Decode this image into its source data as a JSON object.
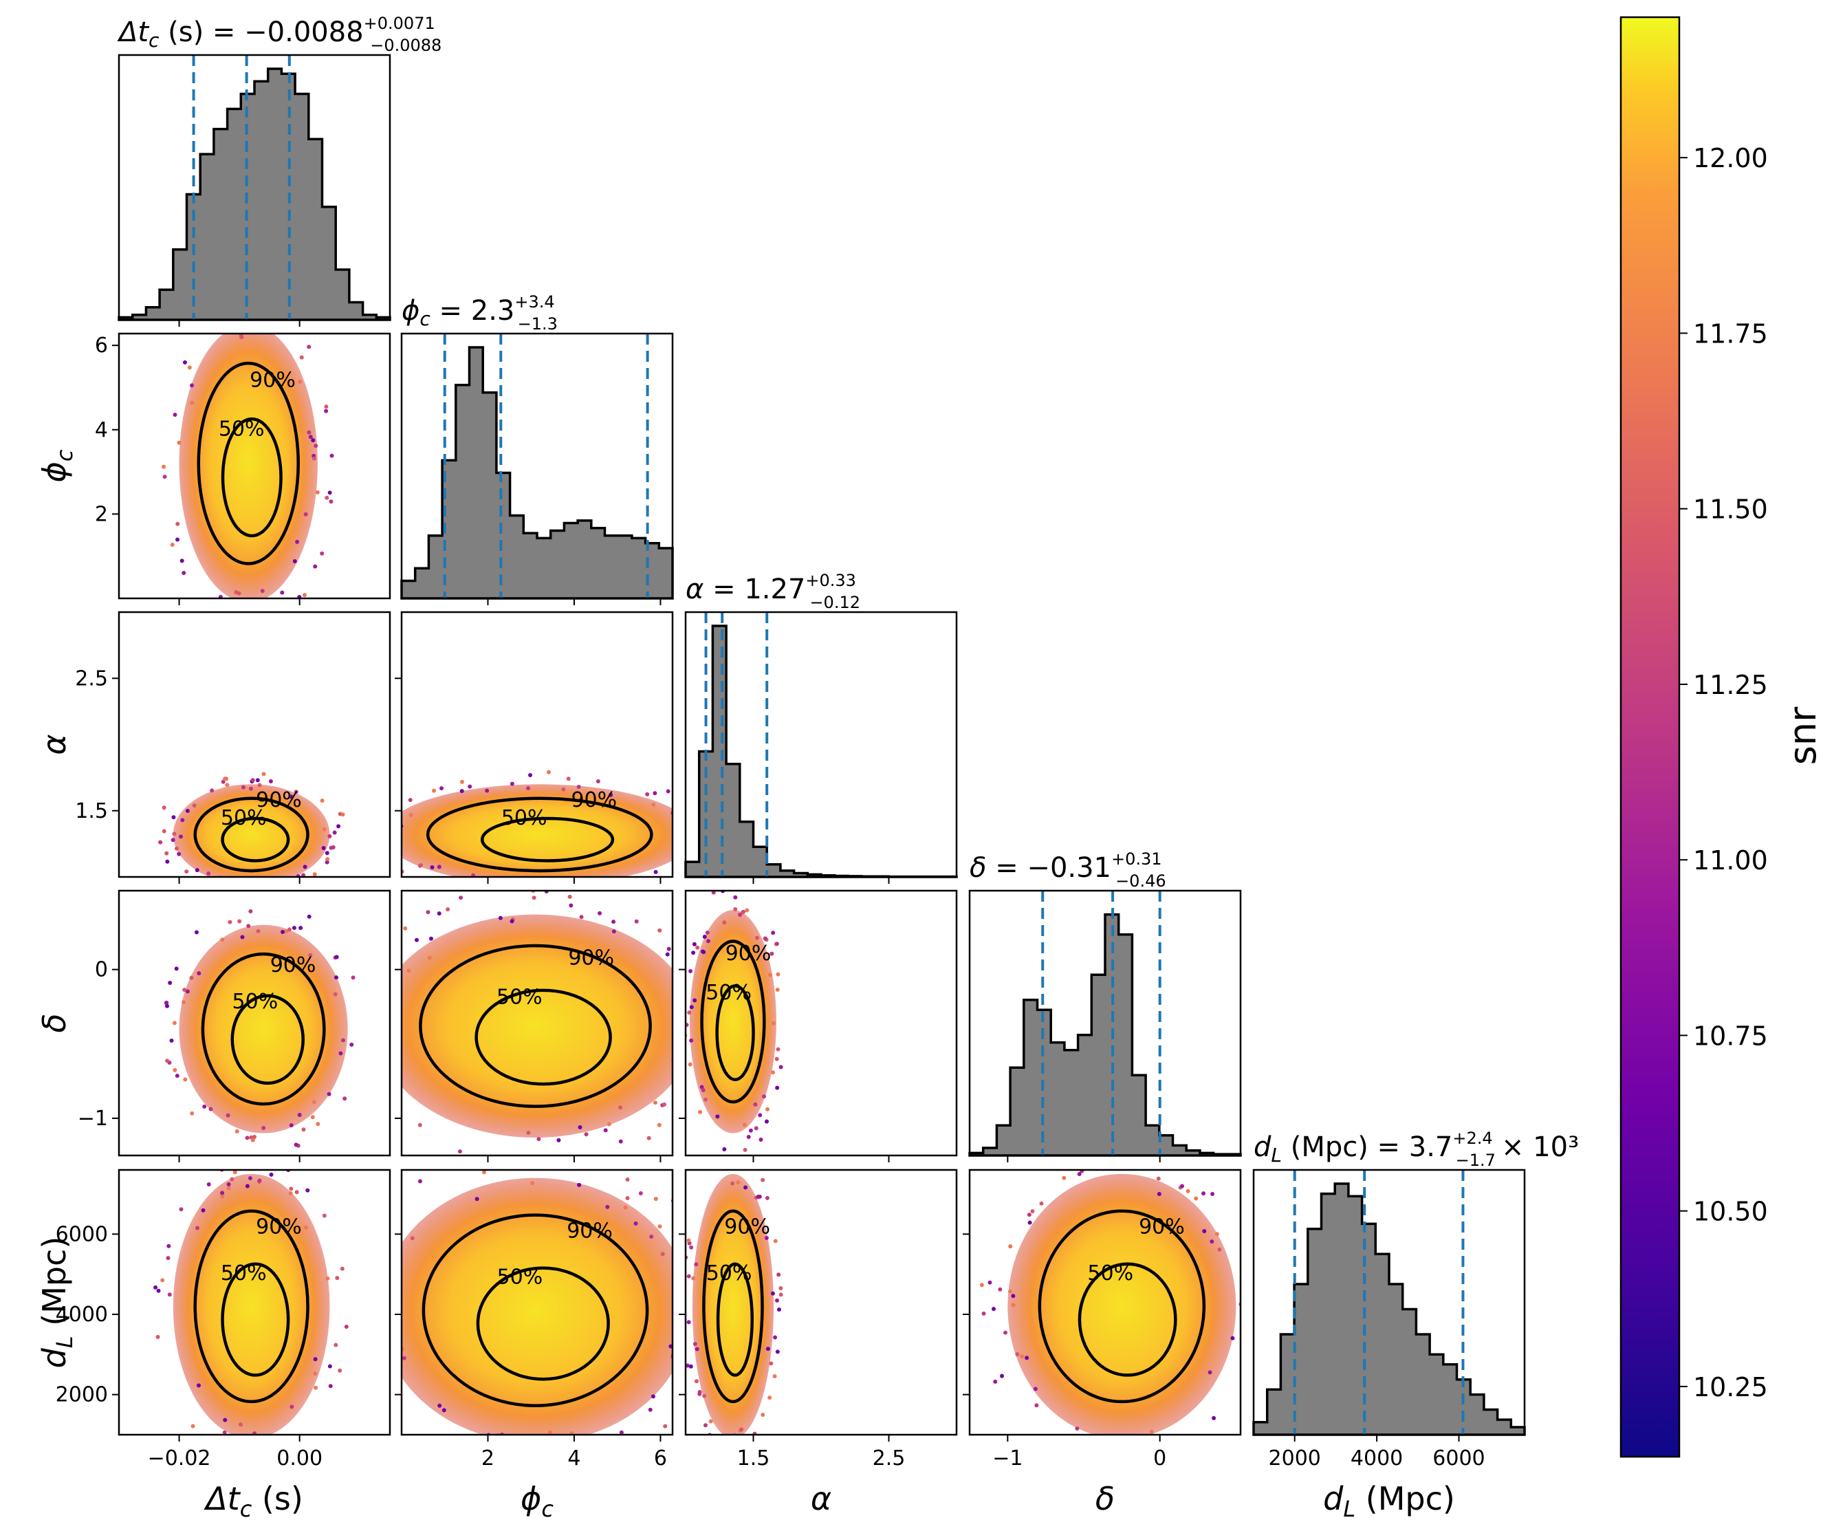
{
  "chart_data": {
    "type": "corner",
    "parameters": [
      {
        "key": "dtc",
        "label": "Δt",
        "sub": "c",
        "unit": "(s)",
        "title_prefix": "Δt",
        "title_sub": "c",
        "title_unit": "(s)",
        "median": "−0.0088",
        "plus": "+0.0071",
        "minus": "−0.0088",
        "ticks": [
          "−0.02",
          "0.00"
        ],
        "range": [
          -0.03,
          0.015
        ],
        "quantiles": [
          -0.0176,
          -0.0088,
          -0.0017
        ]
      },
      {
        "key": "phic",
        "label": "ϕ",
        "sub": "c",
        "unit": "",
        "title_prefix": "ϕ",
        "title_sub": "c",
        "title_unit": "",
        "median": "2.3",
        "plus": "+3.4",
        "minus": "−1.3",
        "ticks": [
          "2",
          "4",
          "6"
        ],
        "range": [
          0.0,
          6.28
        ],
        "quantiles": [
          1.0,
          2.3,
          5.7
        ]
      },
      {
        "key": "alpha",
        "label": "α",
        "sub": "",
        "unit": "",
        "title_prefix": "α",
        "title_sub": "",
        "title_unit": "",
        "median": "1.27",
        "plus": "+0.33",
        "minus": "−0.12",
        "ticks": [
          "1.5",
          "2.5"
        ],
        "range": [
          1.0,
          3.0
        ],
        "quantiles": [
          1.15,
          1.27,
          1.6
        ]
      },
      {
        "key": "delta",
        "label": "δ",
        "sub": "",
        "unit": "",
        "title_prefix": "δ",
        "title_sub": "",
        "title_unit": "",
        "median": "−0.31",
        "plus": "+0.31",
        "minus": "−0.46",
        "ticks": [
          "−1",
          "0"
        ],
        "range": [
          -1.25,
          0.53
        ],
        "quantiles": [
          -0.77,
          -0.31,
          0.0
        ]
      },
      {
        "key": "dl",
        "label": "d",
        "sub": "L",
        "unit": "(Mpc)",
        "title_prefix": "d",
        "title_sub": "L",
        "title_unit": "(Mpc)",
        "median": "3.7",
        "plus": "+2.4",
        "minus": "−1.7",
        "title_suffix": "× 10³",
        "ticks": [
          "2000",
          "4000",
          "6000"
        ],
        "range": [
          1000,
          7600
        ],
        "quantiles": [
          2000,
          3700,
          6100
        ]
      }
    ],
    "offdiag_ticks": {
      "phic": [
        "2",
        "4",
        "6"
      ],
      "alpha": [
        "1.5",
        "2.5"
      ],
      "delta": [
        "−1",
        "0"
      ],
      "dl": [
        "2000",
        "4000",
        "6000"
      ]
    },
    "histograms": {
      "dtc": [
        0.01,
        0.02,
        0.05,
        0.12,
        0.28,
        0.5,
        0.66,
        0.76,
        0.84,
        0.9,
        0.95,
        1.0,
        0.98,
        0.9,
        0.72,
        0.45,
        0.2,
        0.07,
        0.02,
        0.01
      ],
      "phic": [
        0.07,
        0.12,
        0.25,
        0.55,
        0.85,
        1.0,
        0.82,
        0.5,
        0.33,
        0.26,
        0.24,
        0.27,
        0.3,
        0.31,
        0.28,
        0.25,
        0.25,
        0.24,
        0.22,
        0.2
      ],
      "alpha": [
        0.06,
        0.5,
        1.0,
        0.45,
        0.22,
        0.12,
        0.05,
        0.025,
        0.015,
        0.01,
        0.006,
        0.004,
        0.003,
        0.002,
        0.002,
        0.001,
        0.001,
        0.001,
        0.001,
        0.001
      ],
      "delta": [
        0.01,
        0.03,
        0.12,
        0.35,
        0.62,
        0.58,
        0.45,
        0.42,
        0.48,
        0.72,
        0.96,
        0.88,
        0.32,
        0.12,
        0.08,
        0.04,
        0.02,
        0.01,
        0.005,
        0.005
      ],
      "dl": [
        0.05,
        0.18,
        0.4,
        0.6,
        0.82,
        0.96,
        1.0,
        0.95,
        0.84,
        0.72,
        0.6,
        0.5,
        0.4,
        0.32,
        0.28,
        0.22,
        0.16,
        0.1,
        0.06,
        0.03
      ]
    },
    "contour_labels": [
      "50%",
      "90%"
    ],
    "colorbar": {
      "label": "snr",
      "colormap": "plasma",
      "range": [
        10.15,
        12.2
      ],
      "ticks": [
        "10.25",
        "10.50",
        "10.75",
        "11.00",
        "11.25",
        "11.50",
        "11.75",
        "12.00"
      ]
    },
    "colors": {
      "histogram_fill": "#808080",
      "quantile_line": "#1f77b4",
      "contour": "#000000"
    }
  }
}
